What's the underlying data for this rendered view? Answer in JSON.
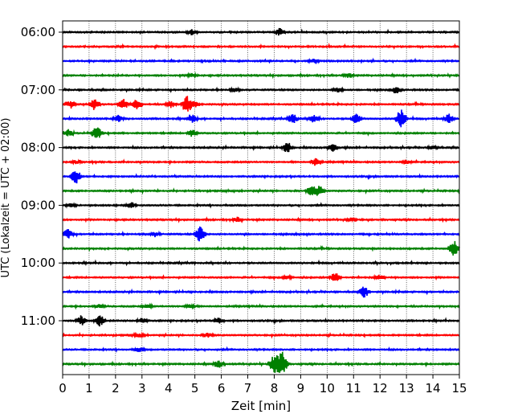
{
  "chart_data": {
    "type": "line",
    "title": "",
    "xlabel": "Zeit  [min]",
    "ylabel": "UTC (Lokalzeit = UTC + 02:00)",
    "xlim": [
      0,
      15
    ],
    "x_ticks": [
      "0",
      "1",
      "2",
      "3",
      "4",
      "5",
      "6",
      "7",
      "8",
      "9",
      "10",
      "11",
      "12",
      "13",
      "14",
      "15"
    ],
    "y_ticks": [
      "06:00",
      "07:00",
      "08:00",
      "09:00",
      "10:00",
      "11:00"
    ],
    "grid": "vertical dotted",
    "trace_interval_minutes": 15,
    "start_time": "06:00",
    "trace_colors": [
      "#000000",
      "#ff0000",
      "#0000ff",
      "#008000"
    ],
    "series": [
      {
        "start": "06:00",
        "bursts": [
          [
            4.9,
            0.5
          ],
          [
            8.2,
            0.7
          ]
        ]
      },
      {
        "start": "06:15",
        "bursts": []
      },
      {
        "start": "06:30",
        "bursts": [
          [
            9.5,
            0.4
          ]
        ]
      },
      {
        "start": "06:45",
        "bursts": [
          [
            4.9,
            0.3
          ],
          [
            10.8,
            0.4
          ]
        ]
      },
      {
        "start": "07:00",
        "bursts": [
          [
            6.5,
            0.3
          ],
          [
            10.4,
            0.4
          ],
          [
            12.6,
            0.6
          ]
        ]
      },
      {
        "start": "07:15",
        "bursts": [
          [
            0.3,
            0.7
          ],
          [
            1.2,
            1.0
          ],
          [
            2.3,
            0.9
          ],
          [
            2.8,
            0.9
          ],
          [
            4.1,
            0.6
          ],
          [
            4.7,
            1.5
          ],
          [
            5.0,
            0.5
          ]
        ]
      },
      {
        "start": "07:30",
        "bursts": [
          [
            2.1,
            0.6
          ],
          [
            4.9,
            0.7
          ],
          [
            8.7,
            1.0
          ],
          [
            9.5,
            0.7
          ],
          [
            11.1,
            1.0
          ],
          [
            12.8,
            1.8
          ],
          [
            14.6,
            0.8
          ]
        ]
      },
      {
        "start": "07:45",
        "bursts": [
          [
            0.2,
            0.6
          ],
          [
            1.3,
            1.2
          ],
          [
            4.9,
            0.6
          ]
        ]
      },
      {
        "start": "08:00",
        "bursts": [
          [
            8.5,
            0.9
          ],
          [
            10.2,
            0.7
          ],
          [
            14.0,
            0.3
          ]
        ]
      },
      {
        "start": "08:15",
        "bursts": [
          [
            0.5,
            0.3
          ],
          [
            9.6,
            0.8
          ],
          [
            13.0,
            0.3
          ]
        ]
      },
      {
        "start": "08:30",
        "bursts": [
          [
            0.5,
            1.3
          ]
        ]
      },
      {
        "start": "08:45",
        "bursts": [
          [
            9.4,
            1.0
          ],
          [
            9.7,
            0.9
          ]
        ]
      },
      {
        "start": "09:00",
        "bursts": [
          [
            0.3,
            0.3
          ],
          [
            2.6,
            0.5
          ]
        ]
      },
      {
        "start": "09:15",
        "bursts": [
          [
            6.6,
            0.4
          ],
          [
            10.9,
            0.3
          ]
        ]
      },
      {
        "start": "09:30",
        "bursts": [
          [
            0.2,
            0.9
          ],
          [
            3.5,
            0.4
          ],
          [
            5.2,
            1.4
          ]
        ]
      },
      {
        "start": "09:45",
        "bursts": [
          [
            14.8,
            1.3
          ]
        ]
      },
      {
        "start": "10:00",
        "bursts": []
      },
      {
        "start": "10:15",
        "bursts": [
          [
            8.5,
            0.3
          ],
          [
            10.3,
            1.0
          ],
          [
            12.0,
            0.4
          ]
        ]
      },
      {
        "start": "10:30",
        "bursts": [
          [
            11.4,
            1.0
          ]
        ]
      },
      {
        "start": "10:45",
        "bursts": [
          [
            1.4,
            0.3
          ],
          [
            3.2,
            0.3
          ],
          [
            4.8,
            0.3
          ]
        ]
      },
      {
        "start": "11:00",
        "bursts": [
          [
            0.7,
            0.8
          ],
          [
            1.4,
            1.0
          ],
          [
            3.0,
            0.5
          ],
          [
            5.9,
            0.5
          ]
        ]
      },
      {
        "start": "11:15",
        "bursts": [
          [
            2.9,
            0.3
          ],
          [
            5.5,
            0.4
          ]
        ]
      },
      {
        "start": "11:30",
        "bursts": [
          [
            2.9,
            0.4
          ]
        ]
      },
      {
        "start": "11:45",
        "bursts": [
          [
            5.9,
            0.7
          ],
          [
            8.0,
            1.6
          ],
          [
            8.3,
            2.2
          ]
        ]
      }
    ]
  }
}
